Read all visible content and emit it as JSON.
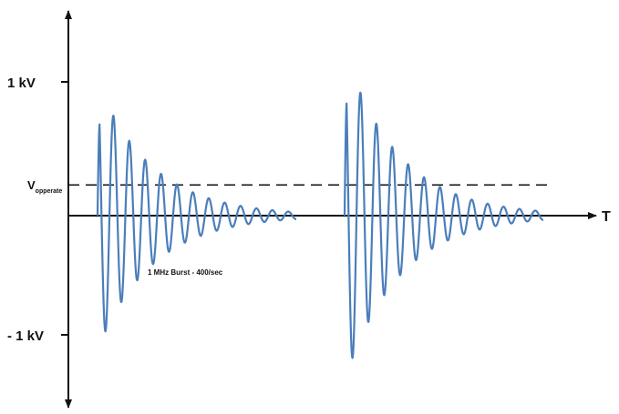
{
  "chart_data": {
    "type": "line",
    "title": "",
    "xlabel": "T",
    "ylabel": "",
    "y_ticks": [
      {
        "value": 1,
        "label": "1 kV"
      },
      {
        "value": -1,
        "label": "- 1 kV"
      }
    ],
    "ylim": [
      -1.45,
      1.55
    ],
    "grid": false,
    "reference_line": {
      "value": 0.23,
      "label_main": "V",
      "label_sub": "opperate",
      "style": "dashed"
    },
    "annotation": "1 MHz Burst - 400/sec",
    "series": [
      {
        "color": "#4a7ebb",
        "bursts": [
          {
            "start": 0.0,
            "amplitude": 1.0,
            "decay": 0.55,
            "cycles": 12.5
          },
          {
            "start": 1.0,
            "amplitude": 1.23,
            "decay": 0.55,
            "cycles": 12.5
          }
        ]
      }
    ]
  }
}
